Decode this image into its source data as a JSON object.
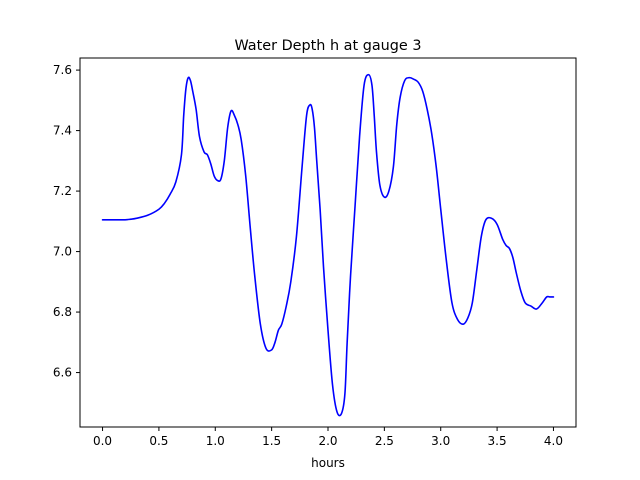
{
  "chart_data": {
    "type": "line",
    "title": "Water Depth h at gauge 3",
    "xlabel": "hours",
    "ylabel": "",
    "xlim": [
      -0.2,
      4.2
    ],
    "ylim": [
      6.42,
      7.64
    ],
    "xticks": [
      0.0,
      0.5,
      1.0,
      1.5,
      2.0,
      2.5,
      3.0,
      3.5,
      4.0
    ],
    "xtick_labels": [
      "0.0",
      "0.5",
      "1.0",
      "1.5",
      "2.0",
      "2.5",
      "3.0",
      "3.5",
      "4.0"
    ],
    "yticks": [
      6.6,
      6.8,
      7.0,
      7.2,
      7.4,
      7.6
    ],
    "ytick_labels": [
      "6.6",
      "6.8",
      "7.0",
      "7.2",
      "7.4",
      "7.6"
    ],
    "grid": false,
    "series": [
      {
        "color": "#0000ff",
        "x": [
          0.0,
          0.1,
          0.2,
          0.25,
          0.3,
          0.4,
          0.5,
          0.55,
          0.6,
          0.65,
          0.7,
          0.72,
          0.74,
          0.76,
          0.78,
          0.8,
          0.83,
          0.86,
          0.9,
          0.93,
          0.96,
          0.99,
          1.02,
          1.05,
          1.08,
          1.11,
          1.14,
          1.17,
          1.2,
          1.23,
          1.27,
          1.31,
          1.35,
          1.4,
          1.45,
          1.5,
          1.53,
          1.56,
          1.59,
          1.63,
          1.67,
          1.72,
          1.77,
          1.81,
          1.84,
          1.86,
          1.88,
          1.9,
          1.93,
          1.96,
          2.0,
          2.04,
          2.08,
          2.12,
          2.15,
          2.17,
          2.2,
          2.24,
          2.28,
          2.32,
          2.36,
          2.39,
          2.41,
          2.43,
          2.46,
          2.5,
          2.54,
          2.58,
          2.61,
          2.64,
          2.68,
          2.72,
          2.76,
          2.8,
          2.84,
          2.88,
          2.92,
          2.96,
          3.0,
          3.05,
          3.1,
          3.15,
          3.2,
          3.24,
          3.28,
          3.32,
          3.36,
          3.4,
          3.45,
          3.5,
          3.55,
          3.58,
          3.61,
          3.64,
          3.67,
          3.71,
          3.75,
          3.8,
          3.85,
          3.9,
          3.94,
          3.97,
          4.0
        ],
        "y": [
          7.105,
          7.105,
          7.105,
          7.107,
          7.11,
          7.12,
          7.14,
          7.16,
          7.19,
          7.23,
          7.32,
          7.45,
          7.54,
          7.575,
          7.565,
          7.53,
          7.47,
          7.38,
          7.33,
          7.32,
          7.29,
          7.25,
          7.235,
          7.24,
          7.3,
          7.41,
          7.465,
          7.45,
          7.42,
          7.37,
          7.25,
          7.08,
          6.92,
          6.76,
          6.68,
          6.675,
          6.7,
          6.74,
          6.76,
          6.82,
          6.9,
          7.05,
          7.28,
          7.45,
          7.485,
          7.47,
          7.41,
          7.3,
          7.14,
          6.95,
          6.74,
          6.56,
          6.47,
          6.465,
          6.53,
          6.7,
          6.92,
          7.15,
          7.38,
          7.55,
          7.585,
          7.55,
          7.45,
          7.33,
          7.22,
          7.18,
          7.2,
          7.28,
          7.42,
          7.51,
          7.565,
          7.575,
          7.57,
          7.56,
          7.53,
          7.47,
          7.39,
          7.28,
          7.14,
          6.97,
          6.83,
          6.775,
          6.76,
          6.78,
          6.83,
          6.94,
          7.05,
          7.105,
          7.11,
          7.09,
          7.04,
          7.02,
          7.01,
          6.98,
          6.93,
          6.87,
          6.83,
          6.82,
          6.81,
          6.83,
          6.85,
          6.85,
          6.85
        ]
      }
    ]
  }
}
